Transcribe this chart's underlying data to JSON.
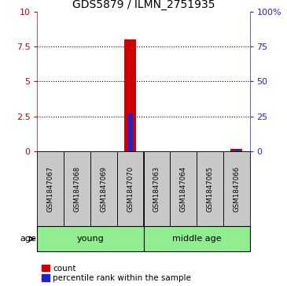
{
  "title": "GDS5879 / ILMN_2751935",
  "samples": [
    "GSM1847067",
    "GSM1847068",
    "GSM1847069",
    "GSM1847070",
    "GSM1847063",
    "GSM1847064",
    "GSM1847065",
    "GSM1847066"
  ],
  "red_values": [
    0,
    0,
    0,
    8.0,
    0,
    0,
    0,
    0.18
  ],
  "blue_values": [
    0,
    0,
    0,
    27.0,
    0,
    0,
    0,
    2.0
  ],
  "ylim_left": [
    0,
    10
  ],
  "ylim_right": [
    0,
    100
  ],
  "yticks_left": [
    0,
    2.5,
    5,
    7.5,
    10
  ],
  "yticks_right": [
    0,
    25,
    50,
    75,
    100
  ],
  "ytick_labels_right": [
    "0",
    "25",
    "50",
    "75",
    "100%"
  ],
  "grid_values": [
    2.5,
    5,
    7.5
  ],
  "groups": [
    {
      "label": "young",
      "span": [
        0,
        3
      ]
    },
    {
      "label": "middle age",
      "span": [
        4,
        7
      ]
    }
  ],
  "age_label": "age",
  "group_color": "#90EE90",
  "sample_box_color": "#c8c8c8",
  "red_bar_width": 0.45,
  "blue_bar_width": 0.18,
  "red_color": "#cc0000",
  "blue_color": "#2222cc",
  "legend_red": "count",
  "legend_blue": "percentile rank within the sample",
  "bg_color": "#ffffff"
}
